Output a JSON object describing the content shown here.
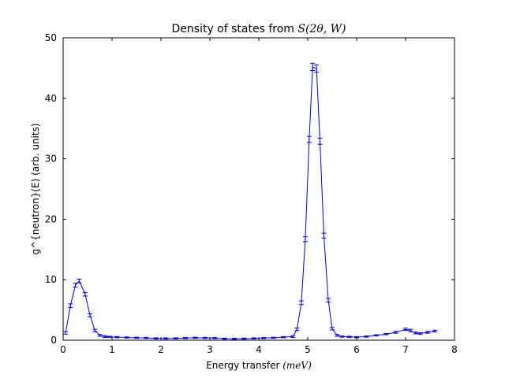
{
  "chart_data": {
    "type": "line",
    "title": "Density of states from ",
    "title_math": "S(2θ, W)",
    "xlabel": "Energy transfer ",
    "xlabel_math": "(meV)",
    "ylabel": "g^{neutron}(E) (arb. units)",
    "xlim": [
      0,
      8
    ],
    "ylim": [
      0,
      50
    ],
    "xticks": [
      "0",
      "1",
      "2",
      "3",
      "4",
      "5",
      "6",
      "7",
      "8"
    ],
    "yticks": [
      "0",
      "10",
      "20",
      "30",
      "40",
      "50"
    ],
    "grid": false,
    "legend": "none",
    "line_color": "#0000ff",
    "series": [
      {
        "x": [
          0.05,
          0.15,
          0.25,
          0.33,
          0.45,
          0.55,
          0.65,
          0.75,
          0.85,
          0.95,
          1.1,
          1.3,
          1.5,
          1.7,
          1.9,
          2.1,
          2.3,
          2.5,
          2.7,
          2.9,
          3.1,
          3.3,
          3.5,
          3.7,
          3.9,
          4.1,
          4.3,
          4.5,
          4.7,
          4.78,
          4.87,
          4.95,
          5.03,
          5.1,
          5.18,
          5.25,
          5.33,
          5.42,
          5.5,
          5.6,
          5.7,
          5.85,
          6.0,
          6.2,
          6.4,
          6.6,
          6.8,
          7.0,
          7.1,
          7.2,
          7.3,
          7.45,
          7.6
        ],
        "y": [
          1.2,
          5.7,
          9.1,
          9.8,
          7.6,
          4.1,
          1.6,
          0.8,
          0.6,
          0.55,
          0.5,
          0.45,
          0.4,
          0.38,
          0.3,
          0.28,
          0.3,
          0.35,
          0.4,
          0.38,
          0.35,
          0.25,
          0.22,
          0.25,
          0.3,
          0.35,
          0.4,
          0.5,
          0.6,
          1.8,
          6.2,
          16.7,
          33.2,
          45.2,
          44.9,
          32.9,
          17.3,
          6.6,
          1.9,
          0.8,
          0.6,
          0.55,
          0.5,
          0.6,
          0.8,
          1.0,
          1.3,
          1.8,
          1.6,
          1.2,
          1.1,
          1.3,
          1.5
        ],
        "err": [
          0.2,
          0.3,
          0.3,
          0.3,
          0.3,
          0.25,
          0.2,
          0.15,
          0.15,
          0.1,
          0.1,
          0.1,
          0.1,
          0.1,
          0.1,
          0.1,
          0.1,
          0.1,
          0.1,
          0.1,
          0.1,
          0.1,
          0.1,
          0.1,
          0.1,
          0.1,
          0.1,
          0.1,
          0.15,
          0.2,
          0.3,
          0.4,
          0.5,
          0.6,
          0.6,
          0.5,
          0.4,
          0.3,
          0.2,
          0.15,
          0.1,
          0.1,
          0.1,
          0.1,
          0.1,
          0.1,
          0.15,
          0.2,
          0.2,
          0.15,
          0.15,
          0.15,
          0.15
        ]
      }
    ]
  }
}
